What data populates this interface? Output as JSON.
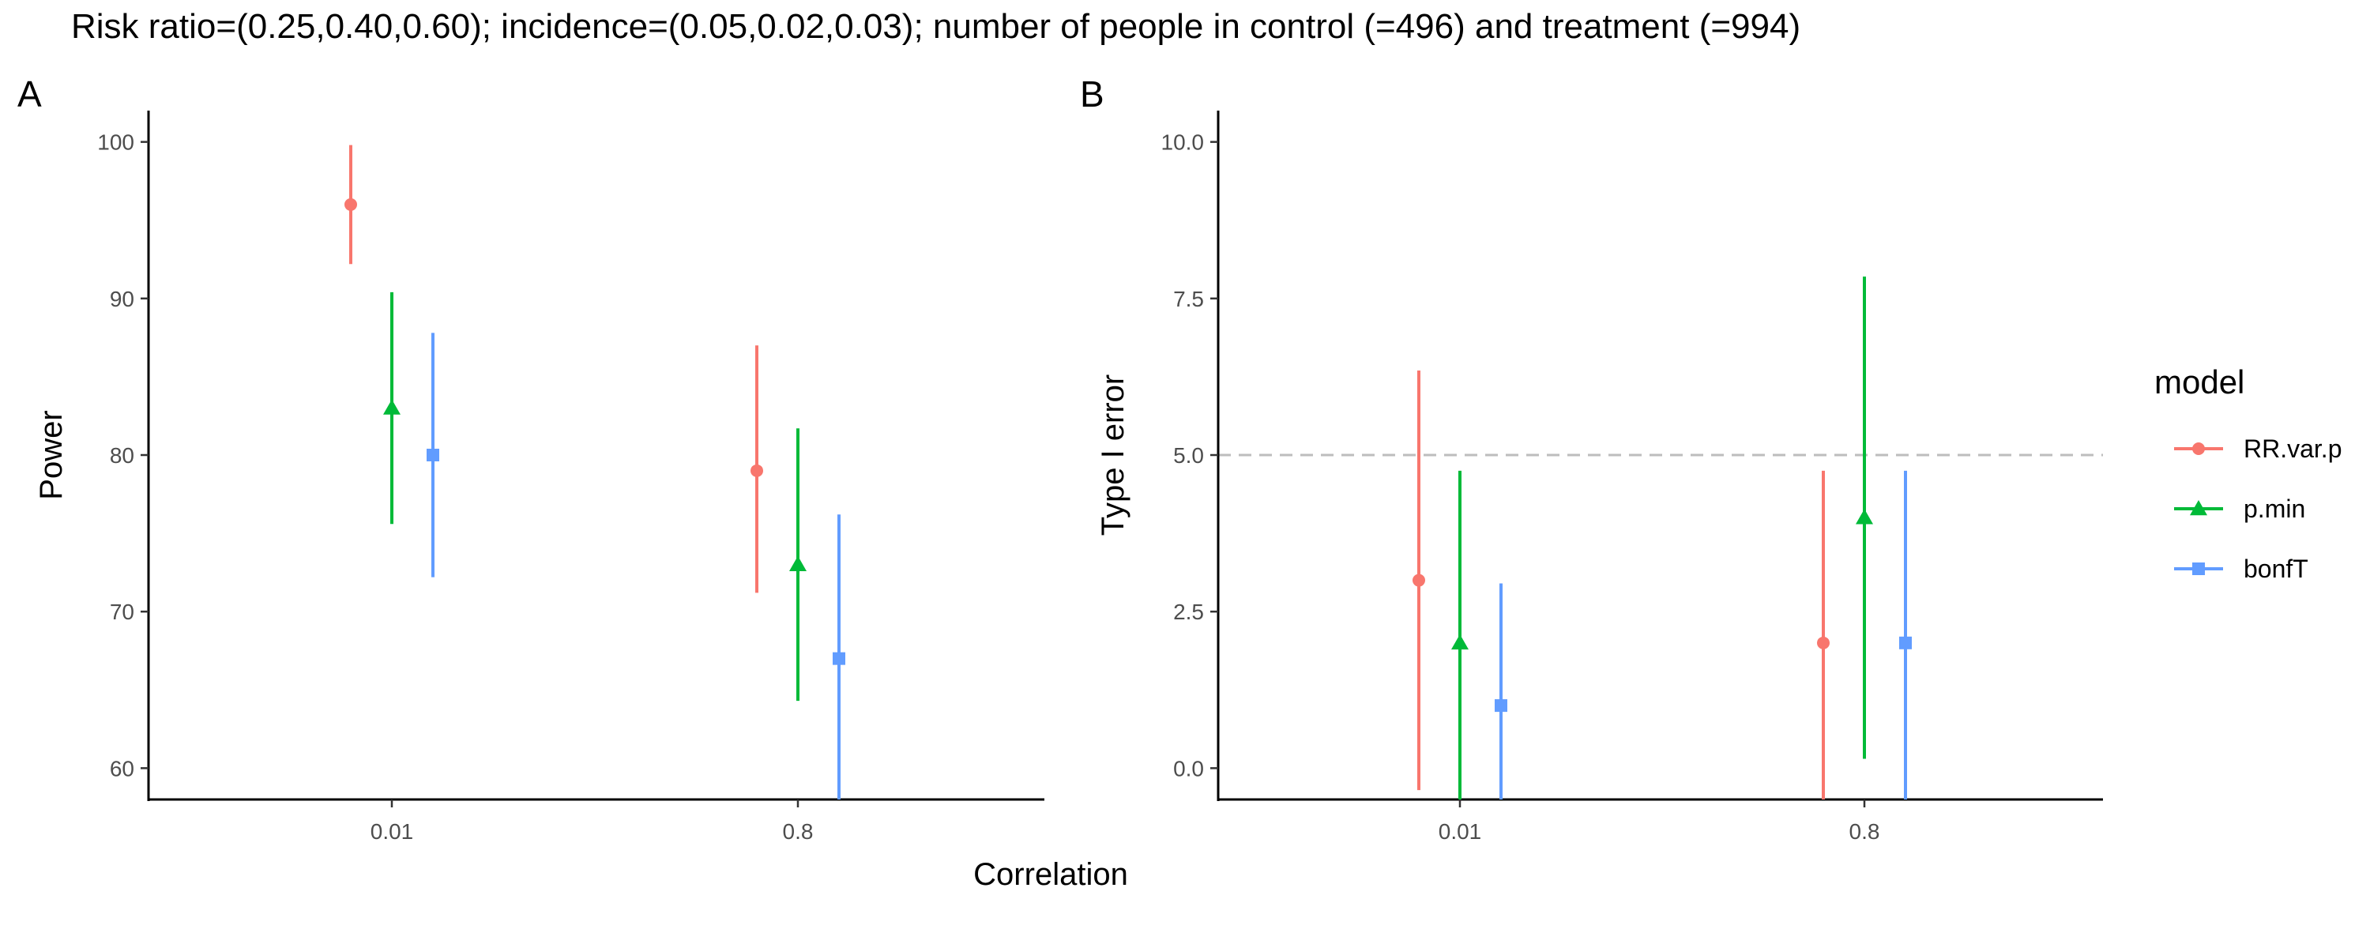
{
  "title": "Risk ratio=(0.25,0.40,0.60); incidence=(0.05,0.02,0.03); number of people in control (=496) and treatment (=994)",
  "shared_xlabel": "Correlation",
  "legend": {
    "title": "model",
    "items": [
      {
        "label": "RR.var.p",
        "color": "#F8766D",
        "shape": "circle"
      },
      {
        "label": "p.min",
        "color": "#00BA38",
        "shape": "triangle"
      },
      {
        "label": "bonfT",
        "color": "#619CFF",
        "shape": "square"
      }
    ]
  },
  "chart_data": [
    {
      "panel": "A",
      "type": "scatter",
      "subtype": "point-with-errorbars",
      "title": "",
      "xlabel": "Correlation",
      "ylabel": "Power",
      "categories": [
        "0.01",
        "0.8"
      ],
      "ylim": [
        58,
        102
      ],
      "yticks": [
        60,
        70,
        80,
        90,
        100
      ],
      "ytick_labels": [
        "60",
        "70",
        "80",
        "90",
        "100"
      ],
      "grid": false,
      "series": [
        {
          "name": "RR.var.p",
          "color": "#F8766D",
          "shape": "circle",
          "values": [
            96,
            79
          ],
          "lower": [
            92.2,
            71.2
          ],
          "upper": [
            99.8,
            87.0
          ]
        },
        {
          "name": "p.min",
          "color": "#00BA38",
          "shape": "triangle",
          "values": [
            83,
            73
          ],
          "lower": [
            75.6,
            64.3
          ],
          "upper": [
            90.4,
            81.7
          ]
        },
        {
          "name": "bonfT",
          "color": "#619CFF",
          "shape": "square",
          "values": [
            80,
            67
          ],
          "lower": [
            72.2,
            58
          ],
          "upper": [
            87.8,
            76.2
          ]
        }
      ]
    },
    {
      "panel": "B",
      "type": "scatter",
      "subtype": "point-with-errorbars",
      "title": "",
      "xlabel": "Correlation",
      "ylabel": "Type I error",
      "categories": [
        "0.01",
        "0.8"
      ],
      "ylim": [
        -0.5,
        10.5
      ],
      "yticks": [
        0,
        2.5,
        5,
        7.5,
        10
      ],
      "ytick_labels": [
        "0.0",
        "2.5",
        "5.0",
        "7.5",
        "10.0"
      ],
      "grid": false,
      "reference_line": {
        "y": 5.0,
        "style": "dashed",
        "color": "#bdbdbd"
      },
      "series": [
        {
          "name": "RR.var.p",
          "color": "#F8766D",
          "shape": "circle",
          "values": [
            3,
            2
          ],
          "lower": [
            -0.35,
            -0.5
          ],
          "upper": [
            6.35,
            4.75
          ]
        },
        {
          "name": "p.min",
          "color": "#00BA38",
          "shape": "triangle",
          "values": [
            2,
            4
          ],
          "lower": [
            -0.5,
            0.15
          ],
          "upper": [
            4.75,
            7.85
          ]
        },
        {
          "name": "bonfT",
          "color": "#619CFF",
          "shape": "square",
          "values": [
            1,
            2
          ],
          "lower": [
            -0.5,
            -0.5
          ],
          "upper": [
            2.95,
            4.75
          ]
        }
      ]
    }
  ]
}
